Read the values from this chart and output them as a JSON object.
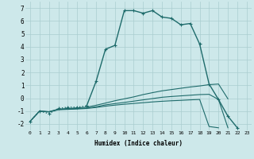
{
  "xlabel": "Humidex (Indice chaleur)",
  "background_color": "#cde8ea",
  "grid_color": "#aacdd0",
  "line_color": "#1e6b6b",
  "x_ticks": [
    0,
    1,
    2,
    3,
    4,
    5,
    6,
    7,
    8,
    9,
    10,
    11,
    12,
    13,
    14,
    15,
    16,
    17,
    18,
    19,
    20,
    21,
    22,
    23
  ],
  "y_ticks": [
    -2,
    -1,
    0,
    1,
    2,
    3,
    4,
    5,
    6,
    7
  ],
  "ylim": [
    -2.5,
    7.5
  ],
  "xlim": [
    -0.5,
    23.5
  ],
  "series": [
    {
      "x": [
        0,
        1,
        2,
        3,
        4,
        5,
        6,
        7,
        8,
        9,
        10,
        11,
        12,
        13,
        14,
        15,
        16,
        17,
        18,
        19,
        20,
        21,
        22
      ],
      "y": [
        -1.8,
        -1.0,
        -1.2,
        -0.8,
        -0.7,
        -0.7,
        -0.6,
        1.3,
        3.8,
        4.1,
        6.8,
        6.8,
        6.6,
        6.8,
        6.3,
        6.2,
        5.7,
        5.8,
        4.2,
        1.1,
        -0.1,
        -1.4,
        -2.3
      ],
      "marker": "+",
      "markersize": 3.5,
      "linewidth": 1.0,
      "dotted_start": 6
    },
    {
      "x": [
        0,
        1,
        2,
        3,
        4,
        5,
        6,
        7,
        8,
        9,
        10,
        11,
        12,
        13,
        14,
        15,
        16,
        17,
        18,
        19,
        20,
        21
      ],
      "y": [
        -1.8,
        -1.0,
        -1.05,
        -0.85,
        -0.8,
        -0.75,
        -0.7,
        -0.55,
        -0.38,
        -0.2,
        -0.05,
        0.1,
        0.28,
        0.43,
        0.57,
        0.67,
        0.77,
        0.87,
        0.95,
        1.05,
        1.1,
        -0.05
      ],
      "marker": null,
      "linewidth": 0.8
    },
    {
      "x": [
        0,
        1,
        2,
        3,
        4,
        5,
        6,
        7,
        8,
        9,
        10,
        11,
        12,
        13,
        14,
        15,
        16,
        17,
        18,
        19,
        20,
        21
      ],
      "y": [
        -1.8,
        -1.0,
        -1.05,
        -0.88,
        -0.83,
        -0.8,
        -0.77,
        -0.67,
        -0.52,
        -0.42,
        -0.33,
        -0.23,
        -0.13,
        -0.03,
        0.07,
        0.13,
        0.18,
        0.23,
        0.28,
        0.3,
        -0.1,
        -2.3
      ],
      "marker": null,
      "linewidth": 0.8
    },
    {
      "x": [
        0,
        1,
        2,
        3,
        4,
        5,
        6,
        7,
        8,
        9,
        10,
        11,
        12,
        13,
        14,
        15,
        16,
        17,
        18,
        19,
        20,
        21
      ],
      "y": [
        -1.8,
        -1.0,
        -1.08,
        -0.9,
        -0.87,
        -0.84,
        -0.8,
        -0.72,
        -0.62,
        -0.54,
        -0.47,
        -0.41,
        -0.35,
        -0.29,
        -0.24,
        -0.2,
        -0.17,
        -0.13,
        -0.1,
        -2.2,
        -2.3,
        null
      ],
      "marker": null,
      "linewidth": 0.8
    }
  ]
}
